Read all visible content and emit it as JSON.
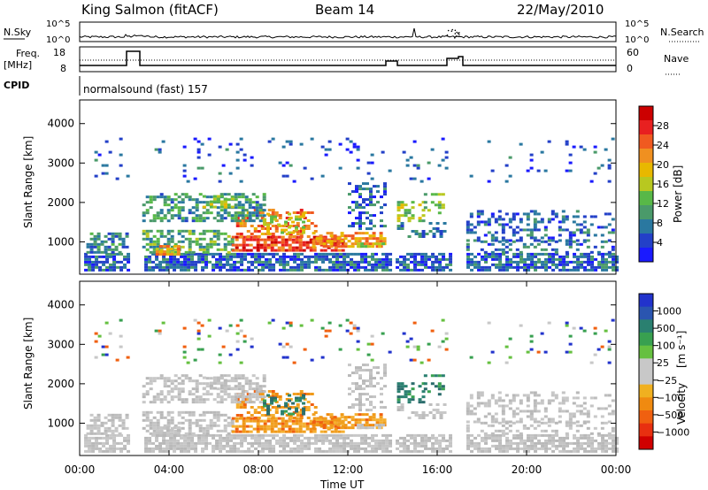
{
  "header": {
    "title": "King Salmon (fitACF)",
    "beam": "Beam 14",
    "date": "22/May/2010"
  },
  "top_panel": {
    "nsky_label": "N.Sky",
    "nsky_ticks": [
      "10^5",
      "10^0"
    ],
    "nsearch_label": "N.Search",
    "nsearch_ticks": [
      "10^5",
      "10^0"
    ],
    "freq_label_1": "Freq.",
    "freq_label_2": "[MHz]",
    "freq_ticks": [
      "18",
      "8"
    ],
    "nave_label": "Nave",
    "nave_ticks": [
      "60",
      "0"
    ],
    "cpid_label": "CPID",
    "cpid_value": "normalsound (fast) 157"
  },
  "time_axis": {
    "ticks": [
      "00:00",
      "04:00",
      "08:00",
      "12:00",
      "16:00",
      "20:00",
      "00:00"
    ],
    "label": "Time UT"
  },
  "chart_data": [
    {
      "type": "heatmap",
      "title": "",
      "ylabel": "Slant Range [km]",
      "xlabel": "Time UT",
      "xlim": [
        0,
        24
      ],
      "ylim": [
        180,
        4600
      ],
      "yticks": [
        "1000",
        "2000",
        "3000",
        "4000"
      ],
      "colorbar": {
        "label": "Power [dB]",
        "ticks": [
          "4",
          "8",
          "12",
          "16",
          "20",
          "24",
          "28"
        ],
        "colors": [
          "#1a1aff",
          "#2340c8",
          "#2a78a0",
          "#4a9a6a",
          "#58b848",
          "#b8c820",
          "#e8b800",
          "#f09020",
          "#f05a20",
          "#e82020",
          "#cc0000"
        ]
      }
    },
    {
      "type": "heatmap",
      "title": "",
      "ylabel": "Slant Range [km]",
      "xlabel": "Time UT",
      "xlim": [
        0,
        24
      ],
      "ylim": [
        180,
        4600
      ],
      "yticks": [
        "1000",
        "2000",
        "3000",
        "4000"
      ],
      "colorbar": {
        "label_main": "Velocity",
        "label_unit": "[m s⁻¹]",
        "ticks": [
          "1000",
          "500",
          "100",
          "25",
          "−25",
          "−100",
          "−500",
          "−1000"
        ],
        "colors": [
          "#2233cc",
          "#2a55b0",
          "#2a8070",
          "#38a050",
          "#66c040",
          "#c8c8c8",
          "#c8c8c8",
          "#f0b020",
          "#f08a10",
          "#f06010",
          "#e83010",
          "#d00000"
        ]
      }
    }
  ],
  "colors": {
    "ground_scatter": "#bdbdbd",
    "low_power": "#1a2ecc"
  }
}
